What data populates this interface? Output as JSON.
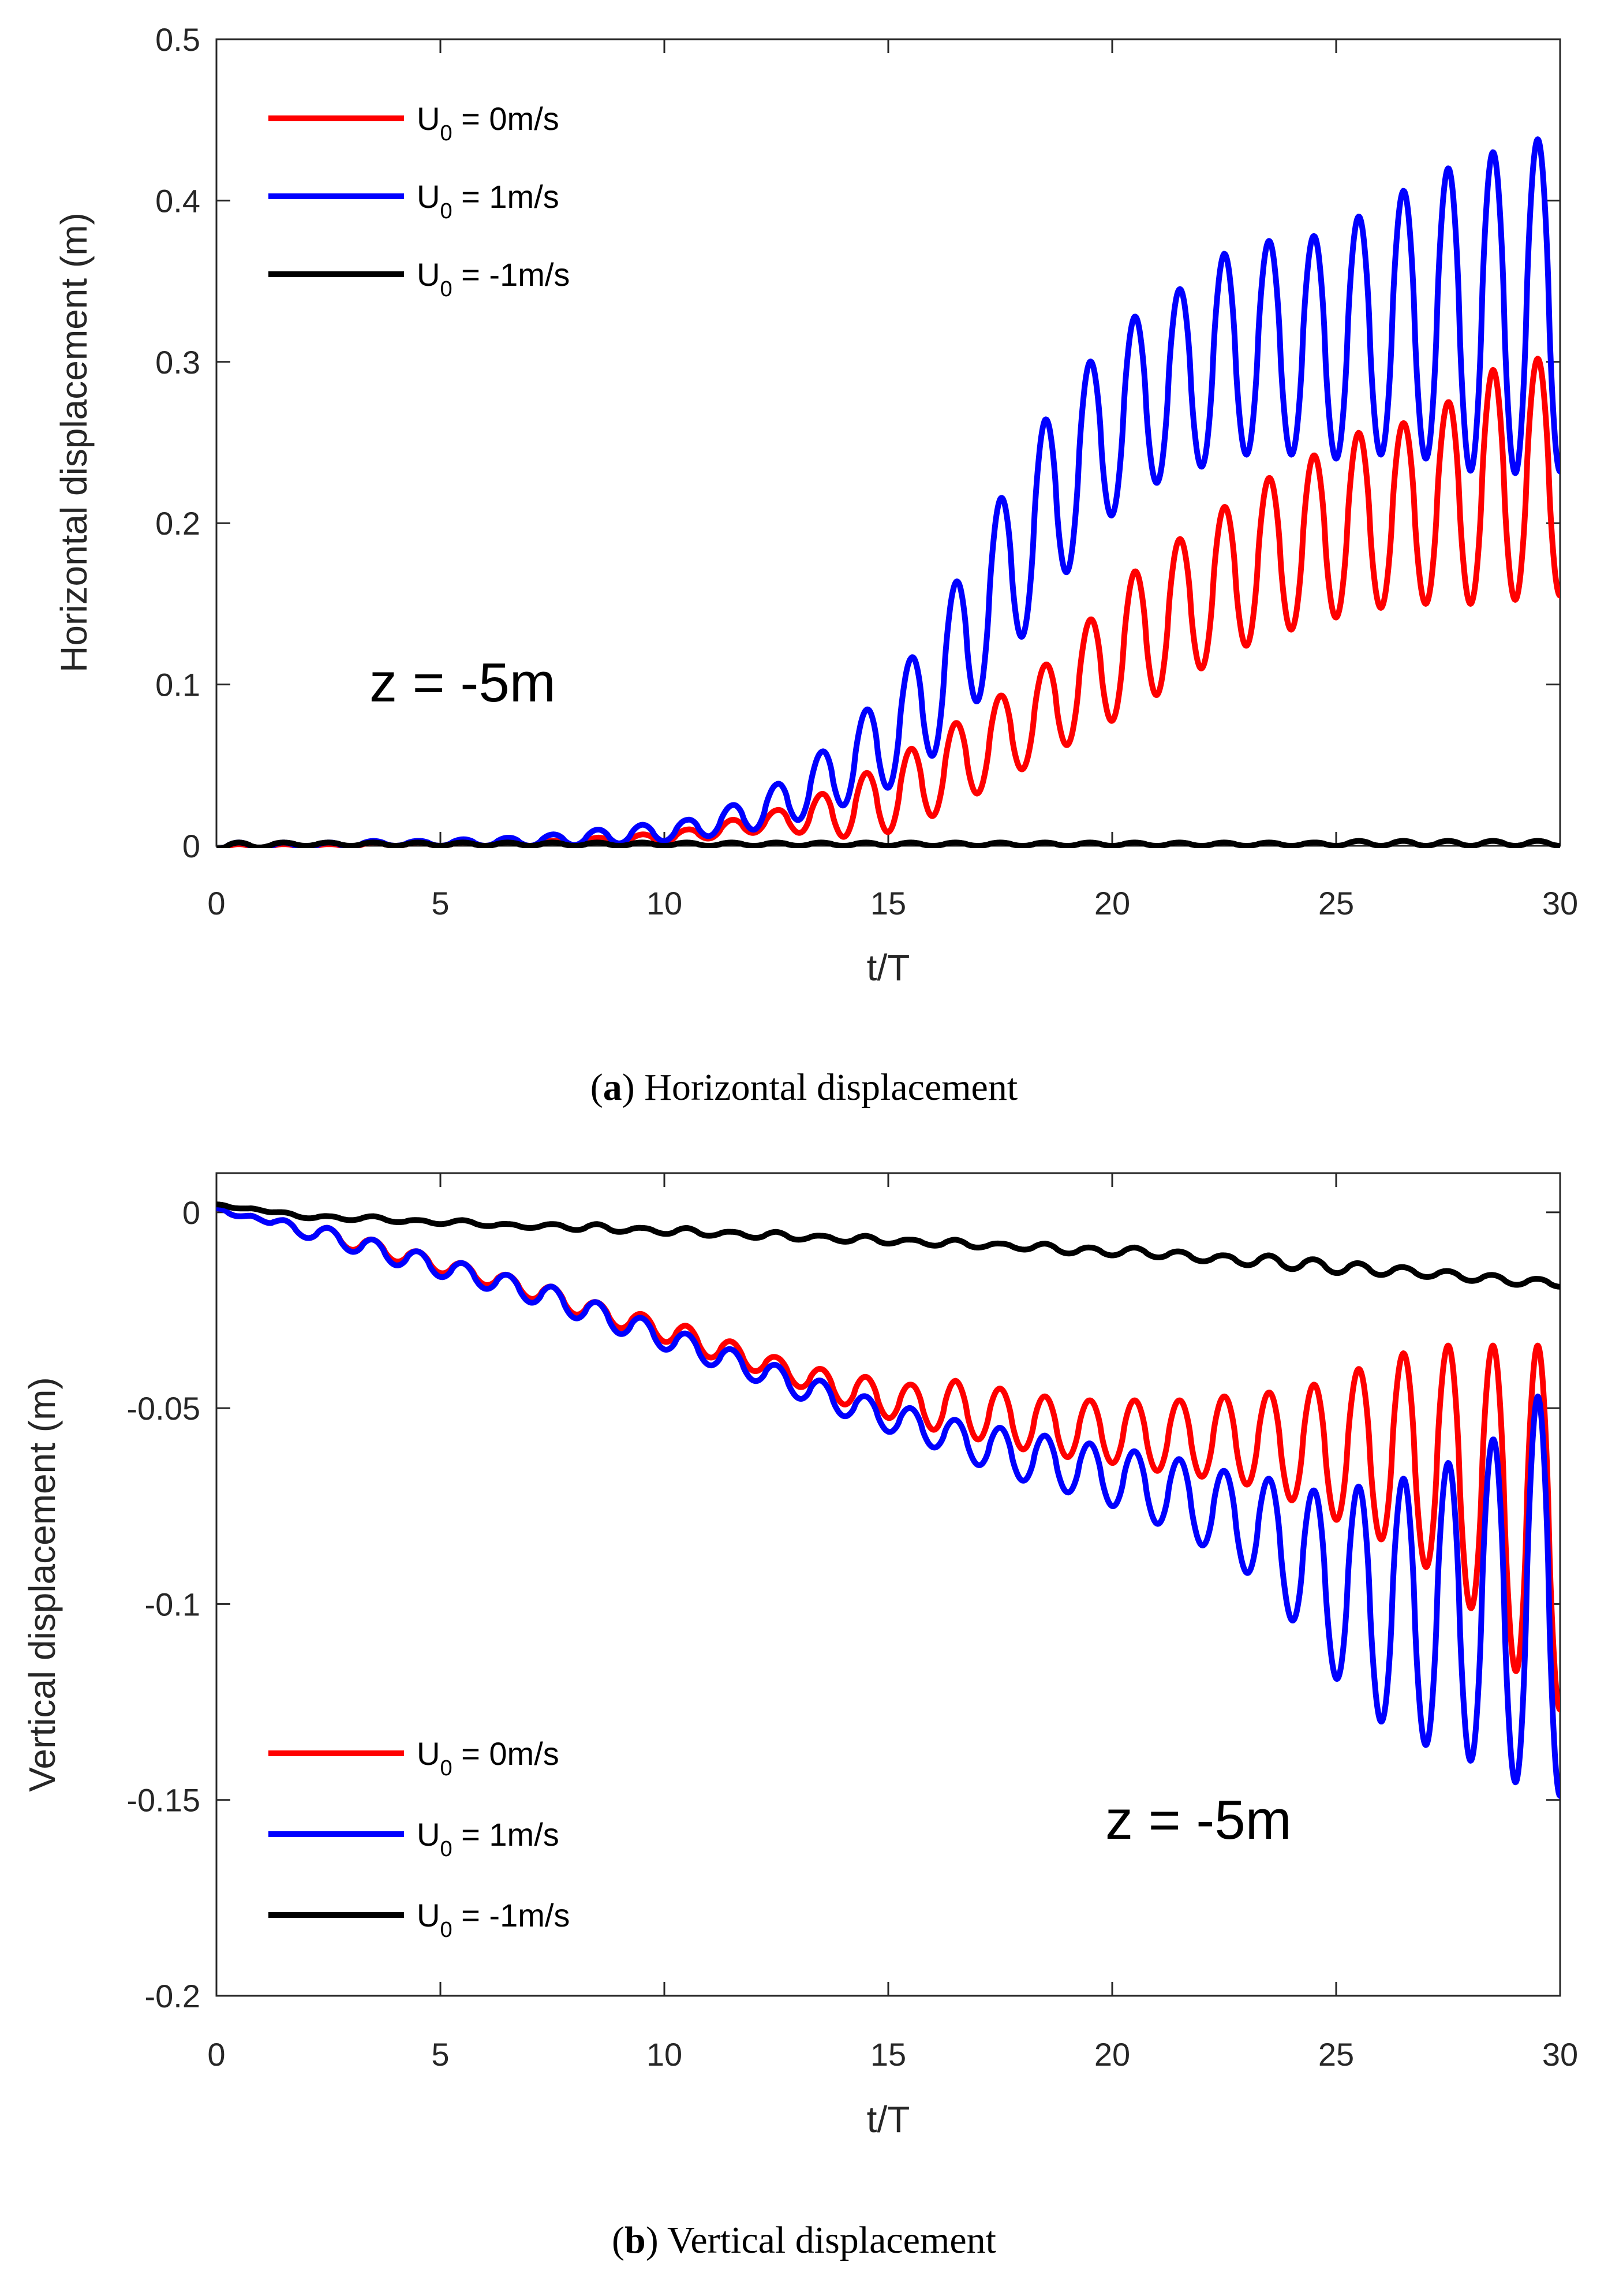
{
  "chart_data": [
    {
      "type": "line",
      "caption_label": "a",
      "caption_text": "Horizontal displacement",
      "xlabel": "t/T",
      "ylabel": "Horizontal displacement (m)",
      "xlim": [
        0,
        30
      ],
      "ylim": [
        0,
        0.5
      ],
      "xticks": [
        "0",
        "5",
        "10",
        "15",
        "20",
        "25",
        "30"
      ],
      "yticks": [
        "0",
        "0.1",
        "0.2",
        "0.3",
        "0.4",
        "0.5"
      ],
      "grid": false,
      "legend_position": "top-left",
      "annotation": "z = -5m",
      "series": [
        {
          "legend_prefix": "U",
          "legend_sub": "0",
          "legend_suffix": " = 0m/s",
          "color": "#ff0000",
          "peak_times": [
            0.5,
            1.5,
            2.5,
            3.5,
            4.5,
            5.5,
            6.5,
            7.5,
            8.5,
            9.5,
            10.5,
            11.5,
            12.5,
            13.5,
            14.5,
            15.5,
            16.5,
            17.5,
            18.5,
            19.5,
            20.5,
            21.5,
            22.5,
            23.5,
            24.5,
            25.5,
            26.5,
            27.5,
            28.5,
            29.5
          ],
          "peaks": [
            0.001,
            0.001,
            0.001,
            0.002,
            0.002,
            0.002,
            0.003,
            0.003,
            0.005,
            0.007,
            0.01,
            0.016,
            0.022,
            0.032,
            0.045,
            0.06,
            0.076,
            0.093,
            0.112,
            0.14,
            0.17,
            0.19,
            0.21,
            0.228,
            0.242,
            0.256,
            0.262,
            0.275,
            0.295,
            0.302
          ],
          "troughs": [
            -0.002,
            -0.001,
            -0.001,
            0.0,
            0.0,
            0.0,
            0.0,
            0.0,
            0.001,
            0.001,
            0.003,
            0.006,
            0.01,
            0.006,
            0.005,
            0.012,
            0.025,
            0.04,
            0.055,
            0.07,
            0.085,
            0.102,
            0.118,
            0.13,
            0.138,
            0.145,
            0.15,
            0.15,
            0.15,
            0.155
          ]
        },
        {
          "legend_prefix": "U",
          "legend_sub": "0",
          "legend_suffix": " = 1m/s",
          "color": "#0000ff",
          "peak_times": [
            0.5,
            1.5,
            2.5,
            3.5,
            4.5,
            5.5,
            6.5,
            7.5,
            8.5,
            9.5,
            10.5,
            11.5,
            12.5,
            13.5,
            14.5,
            15.5,
            16.5,
            17.5,
            18.5,
            19.5,
            20.5,
            21.5,
            22.5,
            23.5,
            24.5,
            25.5,
            26.5,
            27.5,
            28.5,
            29.5
          ],
          "peaks": [
            0.002,
            0.002,
            0.002,
            0.003,
            0.003,
            0.004,
            0.005,
            0.007,
            0.01,
            0.013,
            0.016,
            0.025,
            0.038,
            0.058,
            0.084,
            0.116,
            0.163,
            0.215,
            0.264,
            0.3,
            0.328,
            0.345,
            0.367,
            0.375,
            0.378,
            0.39,
            0.406,
            0.42,
            0.43,
            0.438
          ],
          "troughs": [
            -0.002,
            -0.002,
            -0.001,
            0.0,
            0.0,
            0.0,
            0.0,
            0.0,
            0.001,
            0.002,
            0.004,
            0.008,
            0.012,
            0.02,
            0.03,
            0.042,
            0.07,
            0.11,
            0.15,
            0.19,
            0.22,
            0.23,
            0.24,
            0.245,
            0.24,
            0.24,
            0.245,
            0.235,
            0.23,
            0.232
          ]
        },
        {
          "legend_prefix": "U",
          "legend_sub": "0",
          "legend_suffix": " = -1m/s",
          "color": "#000000",
          "peak_times": [
            0.5,
            1.5,
            2.5,
            3.5,
            4.5,
            5.5,
            6.5,
            7.5,
            8.5,
            9.5,
            10.5,
            11.5,
            12.5,
            13.5,
            14.5,
            15.5,
            16.5,
            17.5,
            18.5,
            19.5,
            20.5,
            21.5,
            22.5,
            23.5,
            24.5,
            25.5,
            26.5,
            27.5,
            28.5,
            29.5
          ],
          "peaks": [
            0.002,
            0.002,
            0.002,
            0.002,
            0.002,
            0.002,
            0.002,
            0.002,
            0.002,
            0.002,
            0.002,
            0.002,
            0.002,
            0.002,
            0.002,
            0.002,
            0.002,
            0.002,
            0.002,
            0.002,
            0.002,
            0.002,
            0.002,
            0.002,
            0.002,
            0.003,
            0.003,
            0.003,
            0.003,
            0.003
          ],
          "troughs": [
            -0.002,
            0.0,
            0.0,
            0.0,
            0.0,
            0.0,
            0.0,
            0.0,
            0.0,
            0.0,
            0.0,
            0.0,
            0.0,
            0.0,
            0.0,
            0.0,
            0.0,
            0.0,
            0.0,
            0.0,
            0.0,
            0.0,
            0.0,
            0.0,
            0.0,
            0.0,
            0.0,
            0.0,
            0.0,
            0.0
          ]
        }
      ]
    },
    {
      "type": "line",
      "caption_label": "b",
      "caption_text": "Vertical displacement",
      "xlabel": "t/T",
      "ylabel": "Vertical displacement (m)",
      "xlim": [
        0,
        30
      ],
      "ylim": [
        -0.2,
        0.01
      ],
      "xticks": [
        "0",
        "5",
        "10",
        "15",
        "20",
        "25",
        "30"
      ],
      "yticks": [
        "0",
        "-0.05",
        "-0.1",
        "-0.15",
        "-0.2"
      ],
      "grid": false,
      "legend_position": "bottom-left",
      "annotation": "z = -5m",
      "series": [
        {
          "legend_prefix": "U",
          "legend_sub": "0",
          "legend_suffix": " = 0m/s",
          "color": "#ff0000",
          "peak_times": [
            0.5,
            1.5,
            2.5,
            3.5,
            4.5,
            5.5,
            6.5,
            7.5,
            8.5,
            9.5,
            10.5,
            11.5,
            12.5,
            13.5,
            14.5,
            15.5,
            16.5,
            17.5,
            18.5,
            19.5,
            20.5,
            21.5,
            22.5,
            23.5,
            24.5,
            25.5,
            26.5,
            27.5,
            28.5,
            29.5
          ],
          "peaks": [
            -0.001,
            -0.002,
            -0.004,
            -0.007,
            -0.01,
            -0.013,
            -0.016,
            -0.019,
            -0.023,
            -0.026,
            -0.029,
            -0.033,
            -0.037,
            -0.04,
            -0.042,
            -0.044,
            -0.043,
            -0.045,
            -0.047,
            -0.048,
            -0.048,
            -0.048,
            -0.047,
            -0.046,
            -0.044,
            -0.04,
            -0.036,
            -0.034,
            -0.034,
            -0.034
          ],
          "troughs": [
            0.001,
            -0.005,
            -0.008,
            -0.011,
            -0.014,
            -0.017,
            -0.02,
            -0.024,
            -0.028,
            -0.031,
            -0.035,
            -0.039,
            -0.042,
            -0.047,
            -0.051,
            -0.054,
            -0.057,
            -0.059,
            -0.062,
            -0.063,
            -0.065,
            -0.067,
            -0.068,
            -0.071,
            -0.076,
            -0.081,
            -0.086,
            -0.095,
            -0.107,
            -0.127
          ]
        },
        {
          "legend_prefix": "U",
          "legend_sub": "0",
          "legend_suffix": " = 1m/s",
          "color": "#0000ff",
          "peak_times": [
            0.5,
            1.5,
            2.5,
            3.5,
            4.5,
            5.5,
            6.5,
            7.5,
            8.5,
            9.5,
            10.5,
            11.5,
            12.5,
            13.5,
            14.5,
            15.5,
            16.5,
            17.5,
            18.5,
            19.5,
            20.5,
            21.5,
            22.5,
            23.5,
            24.5,
            25.5,
            26.5,
            27.5,
            28.5,
            29.5
          ],
          "peaks": [
            -0.001,
            -0.002,
            -0.004,
            -0.007,
            -0.01,
            -0.013,
            -0.016,
            -0.019,
            -0.023,
            -0.027,
            -0.031,
            -0.035,
            -0.039,
            -0.043,
            -0.047,
            -0.05,
            -0.053,
            -0.055,
            -0.057,
            -0.059,
            -0.061,
            -0.063,
            -0.066,
            -0.068,
            -0.071,
            -0.07,
            -0.068,
            -0.064,
            -0.058,
            -0.047
          ],
          "troughs": [
            0.001,
            -0.005,
            -0.008,
            -0.012,
            -0.015,
            -0.018,
            -0.021,
            -0.025,
            -0.029,
            -0.033,
            -0.037,
            -0.041,
            -0.045,
            -0.05,
            -0.054,
            -0.058,
            -0.062,
            -0.067,
            -0.07,
            -0.073,
            -0.077,
            -0.082,
            -0.088,
            -0.096,
            -0.112,
            -0.126,
            -0.134,
            -0.138,
            -0.142,
            -0.149
          ]
        },
        {
          "legend_prefix": "U",
          "legend_sub": "0",
          "legend_suffix": " = -1m/s",
          "color": "#000000",
          "peak_times": [
            0.5,
            1.5,
            2.5,
            3.5,
            4.5,
            5.5,
            6.5,
            7.5,
            8.5,
            9.5,
            10.5,
            11.5,
            12.5,
            13.5,
            14.5,
            15.5,
            16.5,
            17.5,
            18.5,
            19.5,
            20.5,
            21.5,
            22.5,
            23.5,
            24.5,
            25.5,
            26.5,
            27.5,
            28.5,
            29.5
          ],
          "peaks": [
            0.001,
            0.0,
            -0.001,
            -0.001,
            -0.002,
            -0.002,
            -0.003,
            -0.003,
            -0.003,
            -0.004,
            -0.004,
            -0.005,
            -0.005,
            -0.006,
            -0.006,
            -0.007,
            -0.007,
            -0.008,
            -0.008,
            -0.009,
            -0.009,
            -0.01,
            -0.011,
            -0.011,
            -0.012,
            -0.013,
            -0.014,
            -0.015,
            -0.016,
            -0.017
          ],
          "troughs": [
            0.002,
            -0.001,
            -0.002,
            -0.002,
            -0.003,
            -0.003,
            -0.004,
            -0.004,
            -0.005,
            -0.005,
            -0.006,
            -0.006,
            -0.007,
            -0.007,
            -0.008,
            -0.008,
            -0.009,
            -0.009,
            -0.01,
            -0.011,
            -0.011,
            -0.012,
            -0.013,
            -0.014,
            -0.015,
            -0.016,
            -0.016,
            -0.017,
            -0.018,
            -0.019
          ]
        }
      ]
    }
  ]
}
